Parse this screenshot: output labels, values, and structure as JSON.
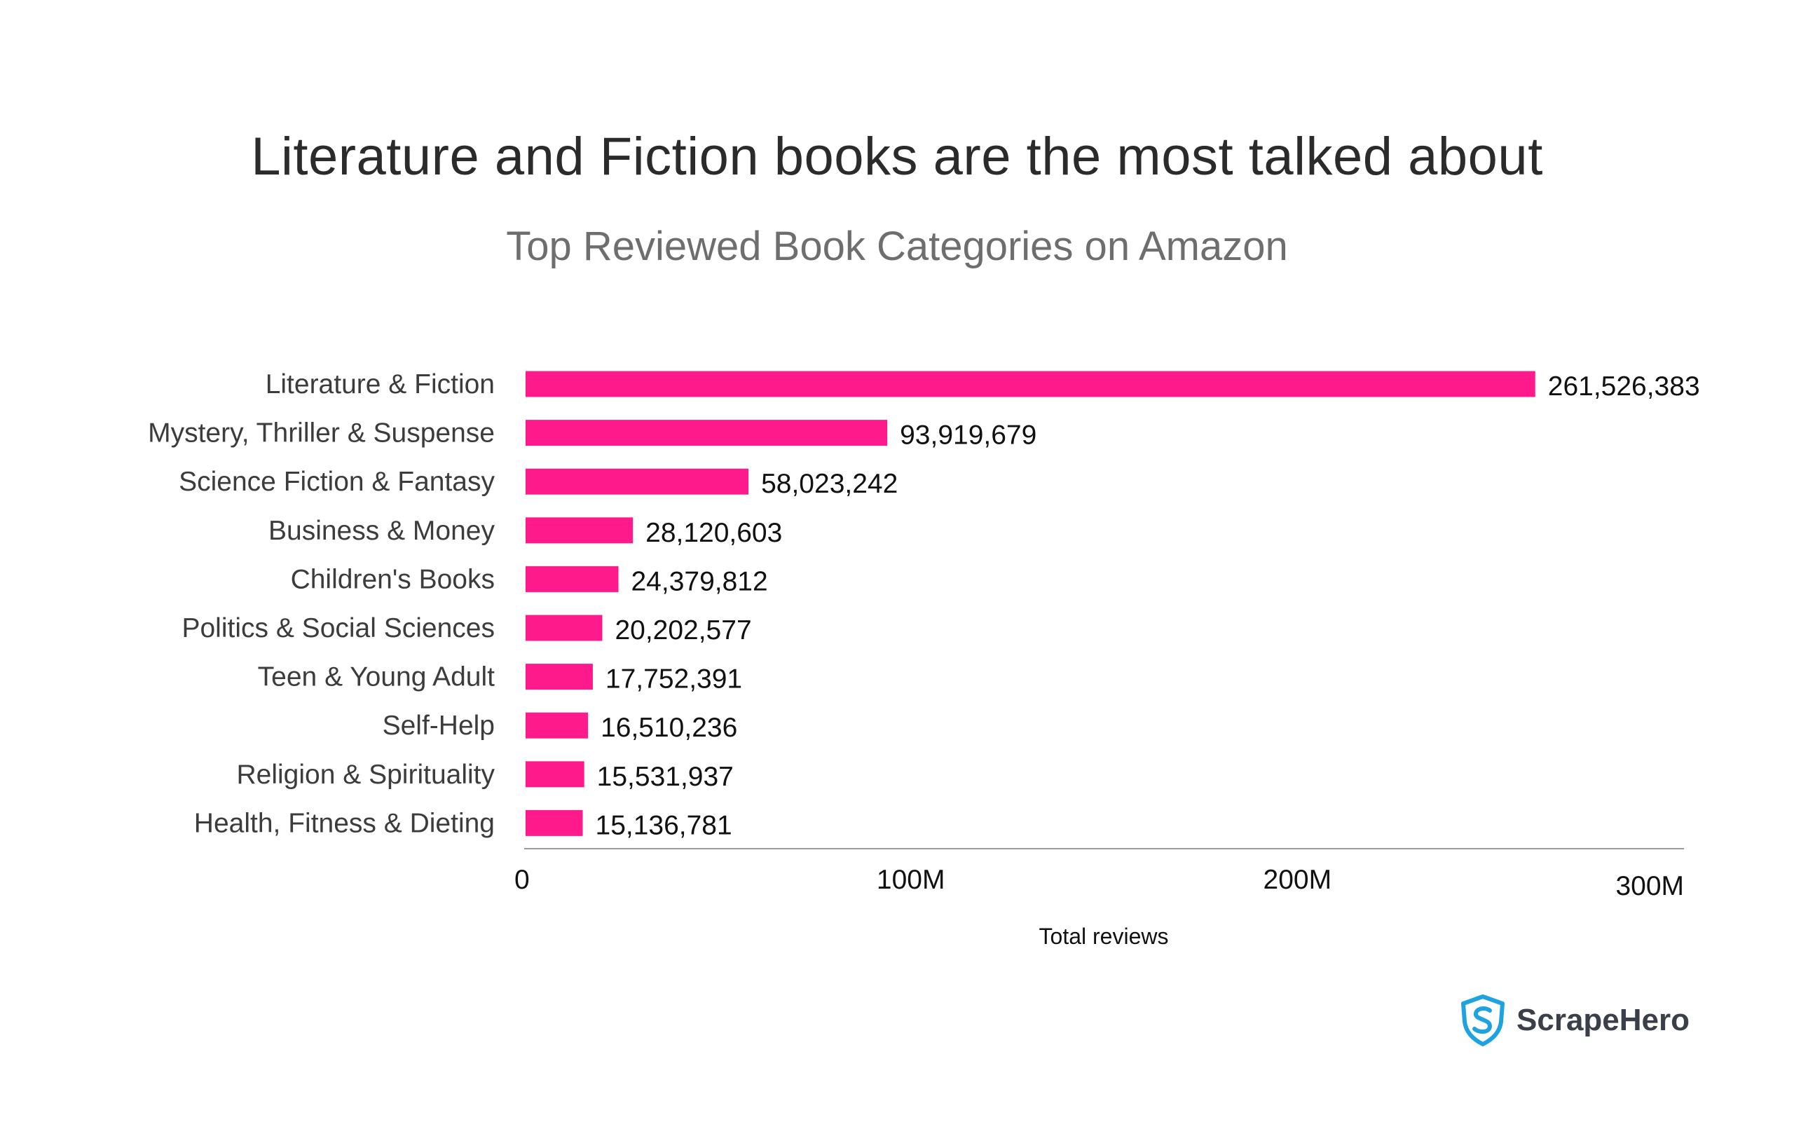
{
  "header": {
    "title": "Literature and Fiction books are the most talked about",
    "subtitle": "Top Reviewed Book Categories on Amazon"
  },
  "chart_data": {
    "type": "bar",
    "orientation": "horizontal",
    "title": "Literature and Fiction books are the most talked about",
    "subtitle": "Top Reviewed Book Categories on Amazon",
    "xlabel": "Total reviews",
    "ylabel": "",
    "xlim": [
      0,
      300000000
    ],
    "x_ticks": [
      {
        "value": 0,
        "label": "0"
      },
      {
        "value": 100000000,
        "label": "100M"
      },
      {
        "value": 200000000,
        "label": "200M"
      },
      {
        "value": 300000000,
        "label": "300M"
      }
    ],
    "grid": false,
    "bar_color": "#FF1A8C",
    "categories": [
      "Literature & Fiction",
      "Mystery, Thriller & Suspense",
      "Science Fiction & Fantasy",
      "Business & Money",
      "Children's Books",
      "Politics & Social Sciences",
      "Teen & Young Adult",
      "Self-Help",
      "Religion & Spirituality",
      "Health, Fitness & Dieting"
    ],
    "values": [
      261526383,
      93919679,
      58023242,
      28120603,
      24379812,
      20202577,
      17752391,
      16510236,
      15531937,
      15136781
    ],
    "value_labels": [
      "261,526,383",
      "93,919,679",
      "58,023,242",
      "28,120,603",
      "24,379,812",
      "20,202,577",
      "17,752,391",
      "16,510,236",
      "15,531,937",
      "15,136,781"
    ]
  },
  "branding": {
    "name": "ScrapeHero",
    "logo_icon": "shield-s-icon",
    "logo_color": "#1FA3E0"
  }
}
